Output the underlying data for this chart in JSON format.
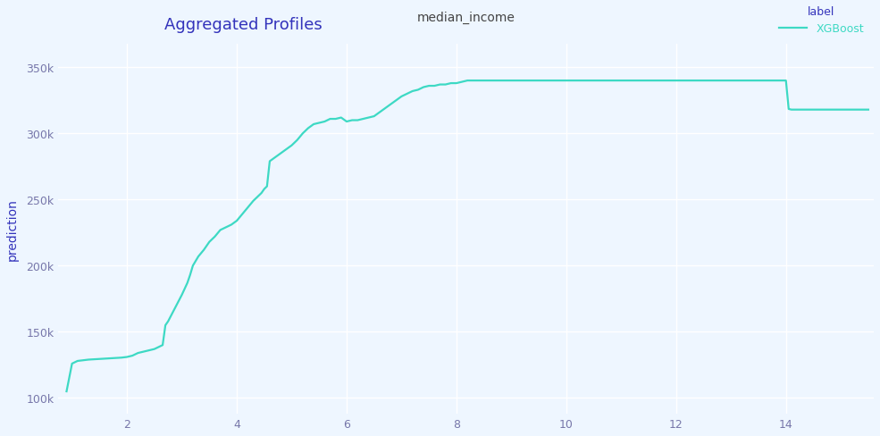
{
  "title": "Aggregated Profiles",
  "xlabel": "median_income",
  "ylabel": "prediction",
  "legend_label": "label",
  "series_label": "XGBoost",
  "line_color": "#3dd9c4",
  "title_color": "#3333bb",
  "axis_label_color": "#3333bb",
  "tick_color": "#7777aa",
  "legend_label_color": "#3333bb",
  "legend_series_color": "#3dd9c4",
  "background_color": "#eef6ff",
  "plot_bg_color": "#eef6ff",
  "grid_color": "#ffffff",
  "ylim": [
    88000,
    368000
  ],
  "xlim": [
    0.75,
    15.6
  ],
  "x": [
    0.9,
    1.0,
    1.1,
    1.3,
    1.5,
    1.7,
    1.9,
    2.0,
    2.05,
    2.1,
    2.15,
    2.2,
    2.3,
    2.4,
    2.5,
    2.6,
    2.65,
    2.7,
    2.75,
    2.8,
    2.9,
    3.0,
    3.1,
    3.15,
    3.2,
    3.3,
    3.4,
    3.5,
    3.6,
    3.7,
    3.8,
    3.9,
    4.0,
    4.1,
    4.2,
    4.3,
    4.4,
    4.45,
    4.5,
    4.55,
    4.6,
    4.7,
    4.8,
    4.9,
    5.0,
    5.05,
    5.1,
    5.2,
    5.3,
    5.4,
    5.5,
    5.6,
    5.7,
    5.8,
    5.9,
    6.0,
    6.1,
    6.2,
    6.3,
    6.4,
    6.5,
    6.6,
    6.7,
    6.8,
    6.9,
    7.0,
    7.1,
    7.2,
    7.3,
    7.4,
    7.5,
    7.6,
    7.7,
    7.8,
    7.9,
    8.0,
    8.1,
    8.2,
    8.3,
    8.5,
    8.7,
    9.0,
    9.5,
    10.0,
    10.5,
    11.0,
    11.5,
    12.0,
    12.5,
    13.0,
    13.5,
    14.0,
    14.05,
    14.1,
    14.2,
    14.4,
    14.6,
    14.8,
    15.0,
    15.3,
    15.5
  ],
  "y": [
    105000,
    126000,
    128000,
    129000,
    129500,
    130000,
    130500,
    131000,
    131500,
    132000,
    133000,
    134000,
    135000,
    136000,
    137000,
    139000,
    140000,
    155000,
    158000,
    162000,
    170000,
    178000,
    187000,
    193000,
    200000,
    207000,
    212000,
    218000,
    222000,
    227000,
    229000,
    231000,
    234000,
    239000,
    244000,
    249000,
    253000,
    255000,
    258000,
    260000,
    279000,
    282000,
    285000,
    288000,
    291000,
    293000,
    295000,
    300000,
    304000,
    307000,
    308000,
    309000,
    311000,
    311000,
    312000,
    309000,
    310000,
    310000,
    311000,
    312000,
    313000,
    316000,
    319000,
    322000,
    325000,
    328000,
    330000,
    332000,
    333000,
    335000,
    336000,
    336000,
    337000,
    337000,
    338000,
    338000,
    339000,
    340000,
    340000,
    340000,
    340000,
    340000,
    340000,
    340000,
    340000,
    340000,
    340000,
    340000,
    340000,
    340000,
    340000,
    340000,
    318500,
    318000,
    318000,
    318000,
    318000,
    318000,
    318000,
    318000,
    318000
  ]
}
